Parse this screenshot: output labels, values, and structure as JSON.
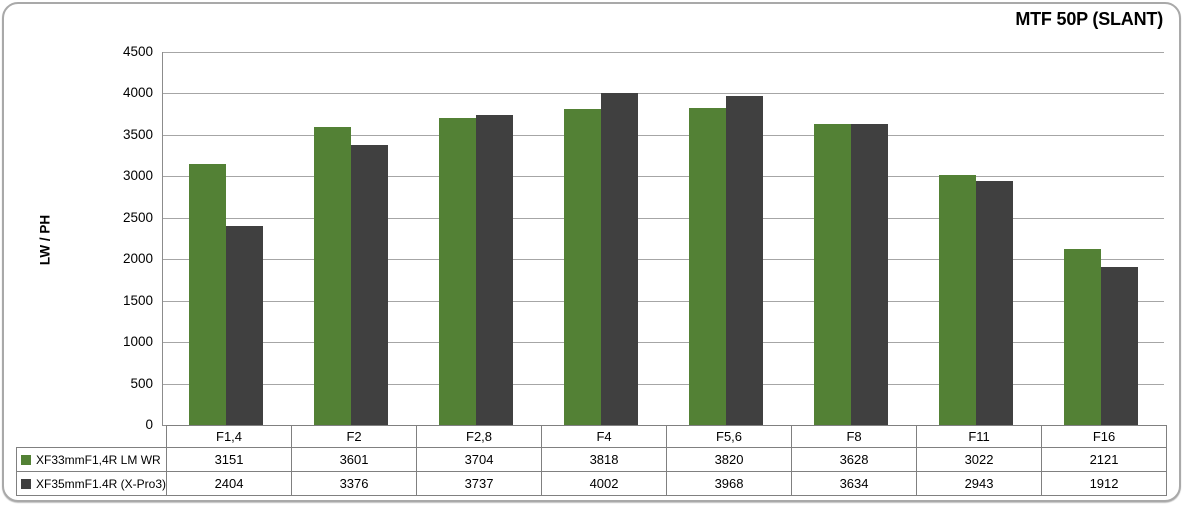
{
  "chart": {
    "title": "MTF 50P (SLANT)",
    "y_axis_label": "LW / PH"
  },
  "chart_data": {
    "type": "bar",
    "title": "MTF 50P (SLANT)",
    "xlabel": "",
    "ylabel": "LW / PH",
    "categories": [
      "F1,4",
      "F2",
      "F2,8",
      "F4",
      "F5,6",
      "F8",
      "F11",
      "F16"
    ],
    "series": [
      {
        "name": "XF33mmF1,4R LM WR",
        "color": "#538135",
        "values": [
          3151,
          3601,
          3704,
          3818,
          3820,
          3628,
          3022,
          2121
        ]
      },
      {
        "name": "XF35mmF1.4R (X-Pro3)",
        "color": "#404040",
        "values": [
          2404,
          3376,
          3737,
          4002,
          3968,
          3634,
          2943,
          1912
        ]
      }
    ],
    "ylim": [
      0,
      4500
    ],
    "ytick_step": 500,
    "grid": true,
    "legend_position": "table-below-chart",
    "colors": {
      "gridline": "#a6a6a6",
      "axis": "#8c8c8c",
      "table_border": "#808080",
      "background": "#ffffff",
      "frame_border": "#a9a9a9"
    }
  }
}
